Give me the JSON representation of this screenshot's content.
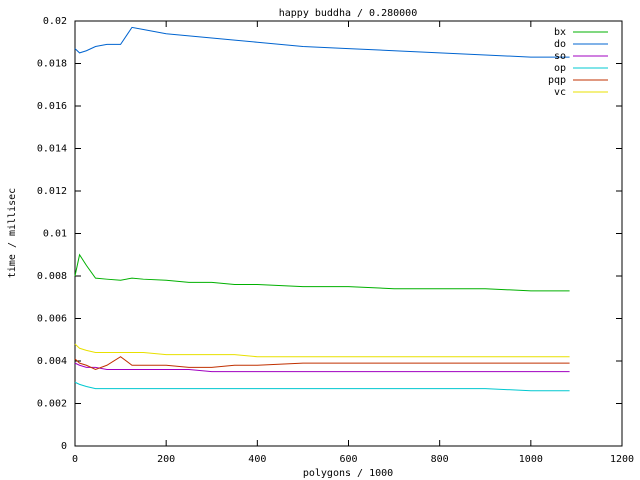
{
  "chart_data": {
    "type": "line",
    "title": "happy buddha / 0.280000",
    "x_label": "polygons / 1000",
    "y_label": "time / millisec",
    "x": [
      0,
      10,
      25,
      45,
      70,
      100,
      125,
      150,
      200,
      250,
      300,
      350,
      400,
      500,
      600,
      700,
      800,
      900,
      1000,
      1085
    ],
    "series": [
      {
        "name": "bx",
        "color": "#00b000",
        "values": [
          0.008,
          0.009,
          0.0085,
          0.0079,
          0.00785,
          0.0078,
          0.0079,
          0.00785,
          0.0078,
          0.0077,
          0.0077,
          0.0076,
          0.0076,
          0.0075,
          0.0075,
          0.0074,
          0.0074,
          0.0074,
          0.0073,
          0.0073
        ]
      },
      {
        "name": "do",
        "color": "#0064d0",
        "values": [
          0.0187,
          0.0185,
          0.0186,
          0.0188,
          0.0189,
          0.0189,
          0.0197,
          0.0196,
          0.0194,
          0.0193,
          0.0192,
          0.0191,
          0.019,
          0.0188,
          0.0187,
          0.0186,
          0.0185,
          0.0184,
          0.0183,
          0.0183
        ]
      },
      {
        "name": "so",
        "color": "#a000c0",
        "values": [
          0.0039,
          0.0038,
          0.0037,
          0.0037,
          0.0036,
          0.0036,
          0.0036,
          0.0036,
          0.0036,
          0.0036,
          0.0035,
          0.0035,
          0.0035,
          0.0035,
          0.0035,
          0.0035,
          0.0035,
          0.0035,
          0.0035,
          0.0035
        ]
      },
      {
        "name": "op",
        "color": "#00c8d0",
        "values": [
          0.003,
          0.0029,
          0.0028,
          0.0027,
          0.0027,
          0.0027,
          0.0027,
          0.0027,
          0.0027,
          0.0027,
          0.0027,
          0.0027,
          0.0027,
          0.0027,
          0.0027,
          0.0027,
          0.0027,
          0.0027,
          0.0026,
          0.0026
        ]
      },
      {
        "name": "pqp",
        "color": "#c03000",
        "values": [
          0.0041,
          0.0039,
          0.0038,
          0.0036,
          0.0038,
          0.0042,
          0.0038,
          0.0038,
          0.0038,
          0.0037,
          0.0037,
          0.0038,
          0.0038,
          0.0039,
          0.0039,
          0.0039,
          0.0039,
          0.0039,
          0.0039,
          0.0039
        ]
      },
      {
        "name": "vc",
        "color": "#e8e000",
        "values": [
          0.0048,
          0.0046,
          0.0045,
          0.0044,
          0.0044,
          0.0044,
          0.0044,
          0.0044,
          0.0043,
          0.0043,
          0.0043,
          0.0043,
          0.0042,
          0.0042,
          0.0042,
          0.0042,
          0.0042,
          0.0042,
          0.0042,
          0.0042
        ]
      }
    ],
    "xlim": [
      0,
      1200
    ],
    "xticks": [
      0,
      200,
      400,
      600,
      800,
      1000,
      1200
    ],
    "ylim": [
      0,
      0.02
    ],
    "yticks": [
      0,
      0.002,
      0.004,
      0.006,
      0.008,
      0.01,
      0.012,
      0.014,
      0.016,
      0.018,
      0.02
    ],
    "legend": "top-right"
  }
}
